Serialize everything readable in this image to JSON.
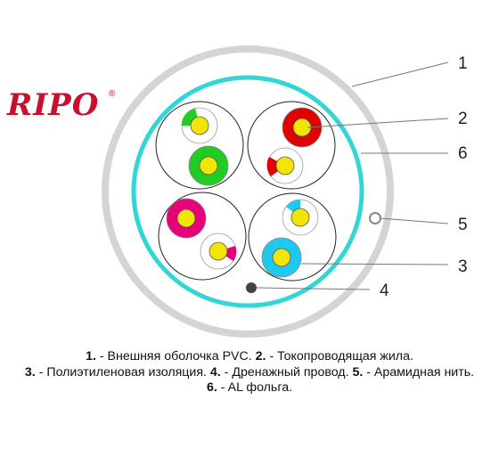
{
  "brand": {
    "logo_text": "RIPO",
    "registered_mark": "®",
    "color": "#c8102e"
  },
  "callouts": [
    "1",
    "2",
    "6",
    "5",
    "3",
    "4"
  ],
  "legend": [
    [
      {
        "num": "1.",
        "text": " - Внешняя оболочка PVC. "
      },
      {
        "num": "2.",
        "text": " - Токопроводящая жила."
      }
    ],
    [
      {
        "num": "3.",
        "text": " - Полиэтиленовая изоляция. "
      },
      {
        "num": "4.",
        "text": " - Дренажный провод. "
      },
      {
        "num": "5.",
        "text": " - Арамидная нить."
      }
    ],
    [
      {
        "num": "6.",
        "text": " - AL фольга."
      }
    ]
  ],
  "colors": {
    "outer_jacket": "#d4d4d4",
    "foil": "#33d6d6",
    "conductor": "#f2e600",
    "pair_1": [
      "#22cc22",
      "#ffffff"
    ],
    "pair_2": [
      "#e00000",
      "#ffffff"
    ],
    "pair_3": [
      "#e8007a",
      "#ffffff"
    ],
    "pair_4": [
      "#1ec8f0",
      "#ffffff"
    ],
    "drain": "#444444"
  }
}
